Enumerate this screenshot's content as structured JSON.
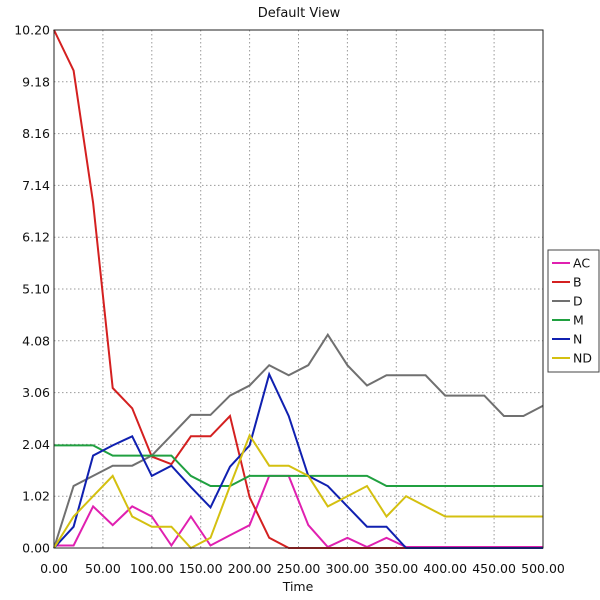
{
  "chart_data": {
    "type": "line",
    "title": "Default View",
    "xlabel": "Time",
    "ylabel": "",
    "xlim": [
      0,
      500
    ],
    "ylim": [
      0,
      10.2
    ],
    "xticks": [
      "0.00",
      "50.00",
      "100.00",
      "150.00",
      "200.00",
      "250.00",
      "300.00",
      "350.00",
      "400.00",
      "450.00",
      "500.00"
    ],
    "yticks": [
      "0.00",
      "1.02",
      "2.04",
      "3.06",
      "4.08",
      "5.10",
      "6.12",
      "7.14",
      "8.16",
      "9.18",
      "10.20"
    ],
    "grid": true,
    "legend_position": "right",
    "x": [
      0,
      20,
      40,
      60,
      80,
      100,
      120,
      140,
      160,
      180,
      200,
      220,
      240,
      260,
      280,
      300,
      320,
      340,
      360,
      380,
      400,
      420,
      440,
      460,
      480,
      500
    ],
    "series": [
      {
        "name": "AC",
        "color": "#e020b0",
        "values": [
          0.05,
          0.05,
          0.82,
          0.45,
          0.82,
          0.62,
          0.05,
          0.62,
          0.05,
          0.25,
          0.45,
          1.42,
          1.42,
          0.45,
          0.02,
          0.2,
          0.02,
          0.2,
          0.02,
          0.02,
          0.02,
          0.02,
          0.02,
          0.02,
          0.02,
          0.02
        ]
      },
      {
        "name": "B",
        "color": "#d42020",
        "values": [
          10.2,
          9.4,
          6.8,
          3.15,
          2.75,
          1.8,
          1.65,
          2.2,
          2.2,
          2.6,
          1.0,
          0.2,
          0.0,
          0.0,
          0.0,
          0.0,
          0.0,
          0.0,
          0.0,
          0.0,
          0.0,
          0.0,
          0.0,
          0.0,
          0.0,
          0.0
        ]
      },
      {
        "name": "D",
        "color": "#707070",
        "values": [
          0.0,
          1.22,
          1.42,
          1.62,
          1.62,
          1.82,
          2.22,
          2.62,
          2.62,
          3.0,
          3.2,
          3.6,
          3.4,
          3.6,
          4.2,
          3.6,
          3.2,
          3.4,
          3.4,
          3.4,
          3.0,
          3.0,
          3.0,
          2.6,
          2.6,
          2.8
        ]
      },
      {
        "name": "M",
        "color": "#20a040",
        "values": [
          2.02,
          2.02,
          2.02,
          1.82,
          1.82,
          1.82,
          1.82,
          1.42,
          1.22,
          1.22,
          1.42,
          1.42,
          1.42,
          1.42,
          1.42,
          1.42,
          1.42,
          1.22,
          1.22,
          1.22,
          1.22,
          1.22,
          1.22,
          1.22,
          1.22,
          1.22
        ]
      },
      {
        "name": "N",
        "color": "#1020b0",
        "values": [
          0.0,
          0.42,
          1.82,
          2.02,
          2.2,
          1.42,
          1.62,
          1.2,
          0.8,
          1.6,
          2.02,
          3.42,
          2.6,
          1.42,
          1.22,
          0.82,
          0.42,
          0.42,
          0.0,
          0.0,
          0.0,
          0.0,
          0.0,
          0.0,
          0.0,
          0.0
        ]
      },
      {
        "name": "ND",
        "color": "#d4c010",
        "values": [
          0.0,
          0.62,
          1.02,
          1.42,
          0.62,
          0.42,
          0.42,
          0.0,
          0.2,
          1.22,
          2.22,
          1.62,
          1.62,
          1.42,
          0.82,
          1.02,
          1.22,
          0.62,
          1.02,
          0.82,
          0.62,
          0.62,
          0.62,
          0.62,
          0.62,
          0.62
        ]
      }
    ]
  }
}
